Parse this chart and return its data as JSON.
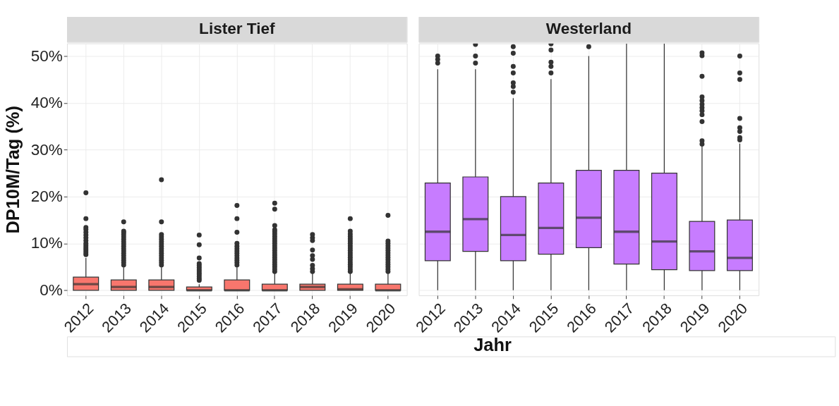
{
  "chart_data": [
    {
      "type": "box",
      "title": "Lister Tief",
      "ylabel": "DP10M/Tag (%)",
      "xlabel": "Jahr",
      "categories": [
        "2012",
        "2013",
        "2014",
        "2015",
        "2016",
        "2017",
        "2018",
        "2019",
        "2020"
      ],
      "ylim": [
        -1.1,
        52.7
      ],
      "yticks": [
        {
          "value": 0,
          "label": "0%"
        },
        {
          "value": 10,
          "label": "10%"
        },
        {
          "value": 20,
          "label": "20%"
        },
        {
          "value": 30,
          "label": "30%"
        },
        {
          "value": 40,
          "label": "40%"
        },
        {
          "value": 50,
          "label": "50%"
        }
      ],
      "grid": true,
      "series": [
        {
          "color": "#f8766d",
          "boxes": [
            {
              "low": 0,
              "q1": 0,
              "median": 1.3,
              "q3": 2.8,
              "high": 6.9,
              "outliers": [
                7.6,
                8.0,
                8.4,
                8.8,
                9.2,
                9.6,
                10.0,
                10.6,
                11.2,
                11.8,
                12.4,
                13.0,
                13.4,
                15.3,
                20.8
              ]
            },
            {
              "low": 0,
              "q1": 0,
              "median": 0.7,
              "q3": 2.2,
              "high": 4.9,
              "outliers": [
                5.4,
                5.9,
                6.4,
                6.9,
                7.4,
                7.9,
                8.4,
                8.9,
                9.4,
                9.9,
                10.4,
                10.9,
                11.4,
                11.9,
                12.3,
                12.6,
                14.6
              ]
            },
            {
              "low": 0,
              "q1": 0,
              "median": 0.7,
              "q3": 2.2,
              "high": 4.9,
              "outliers": [
                5.4,
                5.9,
                6.4,
                6.9,
                7.4,
                7.9,
                8.4,
                8.9,
                9.4,
                9.9,
                10.4,
                10.9,
                11.4,
                11.9,
                14.6,
                23.6
              ]
            },
            {
              "low": 0,
              "q1": 0,
              "median": 0,
              "q3": 0.7,
              "high": 1.3,
              "outliers": [
                2.1,
                2.5,
                2.9,
                3.3,
                3.7,
                4.1,
                4.5,
                4.9,
                5.3,
                5.7,
                6.9,
                9.7,
                11.8
              ]
            },
            {
              "low": 0,
              "q1": 0,
              "median": 0,
              "q3": 2.2,
              "high": 4.9,
              "outliers": [
                5.4,
                5.9,
                6.4,
                6.9,
                7.4,
                7.9,
                8.4,
                8.9,
                9.4,
                10.0,
                12.4,
                15.3,
                18.1
              ]
            },
            {
              "low": 0,
              "q1": 0,
              "median": 0,
              "q3": 1.3,
              "high": 4.0,
              "outliers": [
                4.0,
                4.5,
                5.0,
                5.5,
                6.0,
                6.5,
                7.0,
                7.5,
                8.0,
                8.5,
                9.0,
                9.5,
                10.0,
                10.5,
                11.0,
                11.5,
                12.0,
                12.5,
                12.9,
                13.8,
                17.3,
                18.6
              ]
            },
            {
              "low": 0,
              "q1": 0,
              "median": 0.7,
              "q3": 1.3,
              "high": 4.0,
              "outliers": [
                4.0,
                4.6,
                5.3,
                6.6,
                7.4,
                8.6,
                10.6,
                11.2,
                11.9
              ]
            },
            {
              "low": 0,
              "q1": 0,
              "median": 0.2,
              "q3": 1.3,
              "high": 4.0,
              "outliers": [
                4.0,
                4.5,
                5.0,
                5.5,
                6.0,
                6.5,
                7.0,
                7.5,
                8.0,
                8.5,
                9.0,
                9.5,
                10.0,
                10.5,
                11.0,
                11.5,
                12.0,
                12.6,
                15.3
              ]
            },
            {
              "low": 0,
              "q1": 0,
              "median": 0,
              "q3": 1.3,
              "high": 4.0,
              "outliers": [
                4.0,
                4.5,
                5.0,
                5.5,
                6.0,
                6.5,
                7.0,
                7.5,
                8.0,
                8.5,
                9.0,
                9.5,
                10.0,
                10.5,
                16.0
              ]
            }
          ]
        }
      ]
    },
    {
      "type": "box",
      "title": "Westerland",
      "categories": [
        "2012",
        "2013",
        "2014",
        "2015",
        "2016",
        "2017",
        "2018",
        "2019",
        "2020"
      ],
      "ylim": [
        -1.1,
        52.7
      ],
      "yticks": [
        0,
        10,
        20,
        30,
        40,
        50
      ],
      "grid": true,
      "tick_labels": "x",
      "series": [
        {
          "color": "#c77cff",
          "boxes": [
            {
              "low": 0,
              "q1": 6.3,
              "median": 12.5,
              "q3": 22.9,
              "high": 47.2,
              "outliers": [
                48.5,
                49.3,
                50.0
              ]
            },
            {
              "low": 0,
              "q1": 8.3,
              "median": 15.2,
              "q3": 24.2,
              "high": 47.2,
              "outliers": [
                48.5,
                50.0,
                52.5
              ]
            },
            {
              "low": 0,
              "q1": 6.3,
              "median": 11.8,
              "q3": 20.0,
              "high": 41.0,
              "outliers": [
                42.3,
                43.5,
                44.3,
                46.4,
                47.8,
                50.6,
                52.0
              ]
            },
            {
              "low": 0,
              "q1": 7.7,
              "median": 13.3,
              "q3": 22.9,
              "high": 45.1,
              "outliers": [
                46.4,
                47.8,
                48.7,
                51.3,
                52.6
              ]
            },
            {
              "low": 0,
              "q1": 9.1,
              "median": 15.5,
              "q3": 25.6,
              "high": 50.0,
              "outliers": [
                52.0
              ]
            },
            {
              "low": 0,
              "q1": 5.6,
              "median": 12.5,
              "q3": 25.6,
              "high": 52.7
            },
            {
              "low": 0,
              "q1": 4.4,
              "median": 10.4,
              "q3": 25.0,
              "high": 52.7
            },
            {
              "low": 0,
              "q1": 4.2,
              "median": 8.3,
              "q3": 14.7,
              "high": 30.7,
              "outliers": [
                31.2,
                31.9,
                36.0,
                37.5,
                38.3,
                39.0,
                39.7,
                40.5,
                41.3,
                45.7,
                50.1,
                50.7
              ]
            },
            {
              "low": 0,
              "q1": 4.2,
              "median": 6.9,
              "q3": 15.0,
              "high": 31.3,
              "outliers": [
                32.1,
                32.6,
                33.9,
                34.7,
                36.7,
                45.0,
                46.4,
                50.0
              ]
            }
          ]
        }
      ]
    }
  ]
}
